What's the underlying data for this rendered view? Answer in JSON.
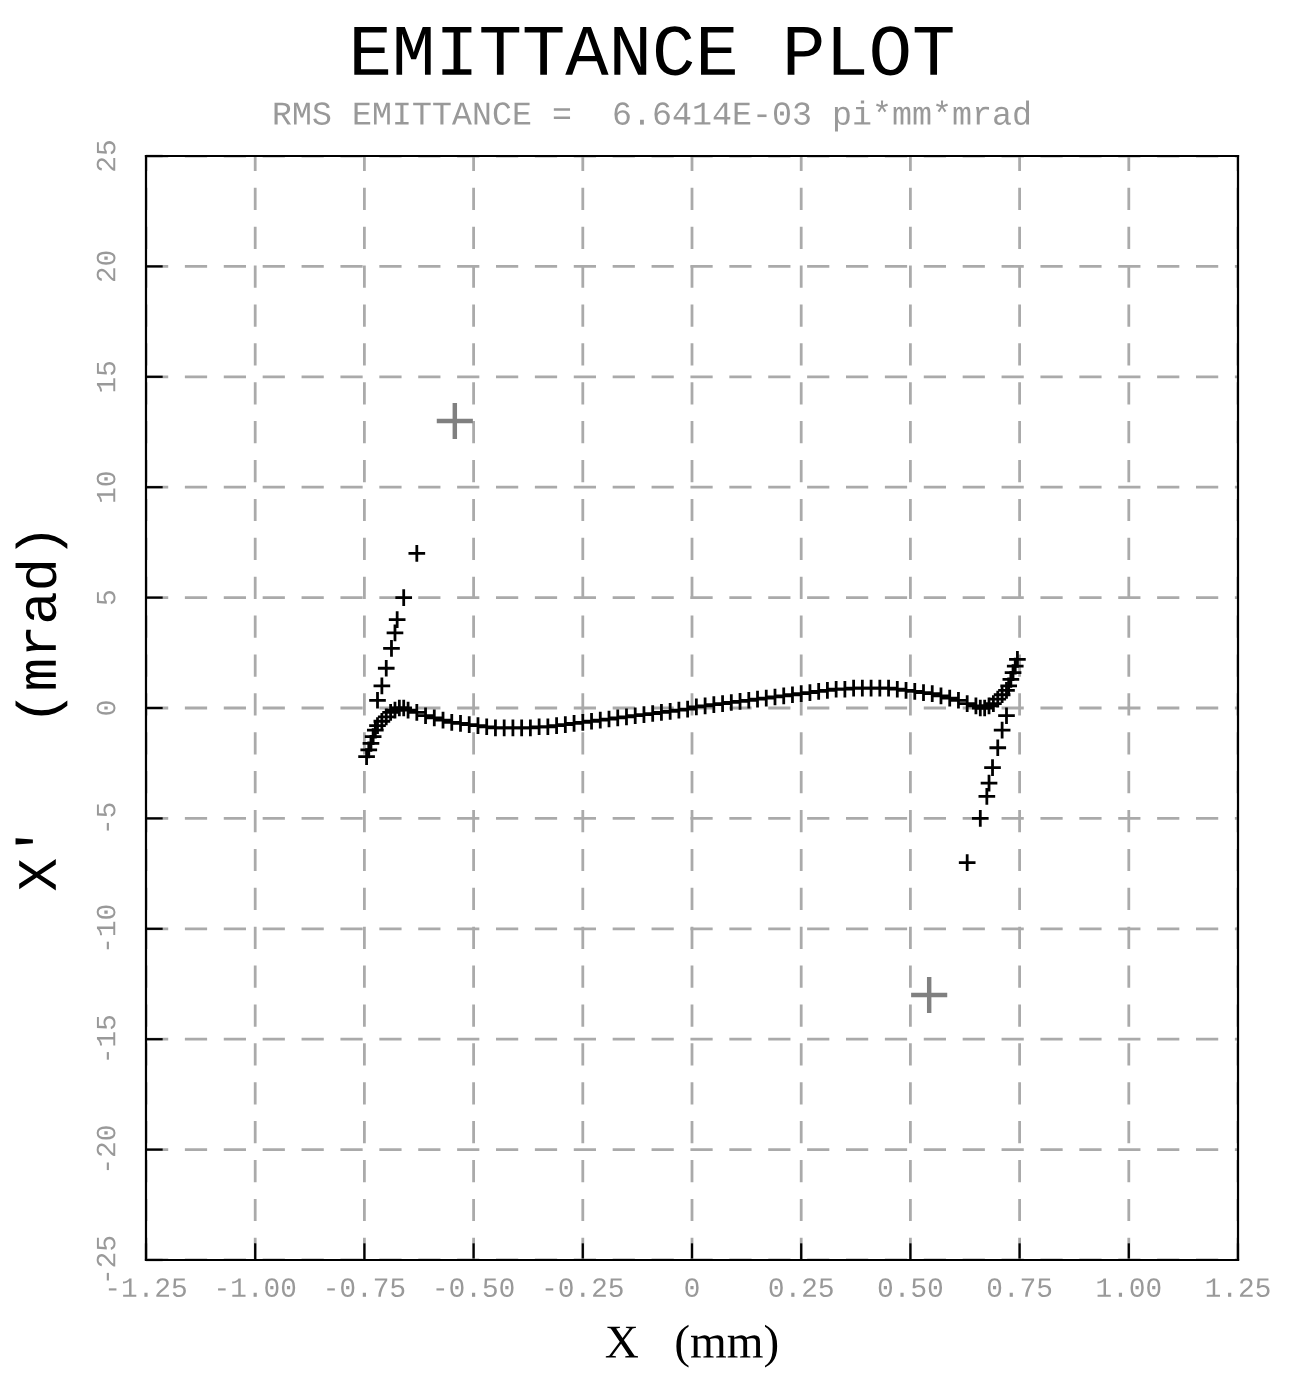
{
  "chart_data": {
    "type": "scatter",
    "title": "EMITTANCE PLOT",
    "subtitle": "RMS EMITTANCE =  6.6414E-03 pi*mm*mrad",
    "xlabel": "X   (mm)",
    "ylabel": "X'   (mrad)",
    "xlim": [
      -1.25,
      1.25
    ],
    "ylim": [
      -25,
      25
    ],
    "xticks": [
      -1.25,
      {
        "value": -1.0,
        "label": "-1.00"
      },
      {
        "value": -0.75,
        "label": "-0.75"
      },
      {
        "value": -0.5,
        "label": "-0.50"
      },
      {
        "value": -0.25,
        "label": "-0.25"
      },
      0,
      0.25,
      {
        "value": 0.5,
        "label": "0.50"
      },
      0.75,
      {
        "value": 1.0,
        "label": "1.00"
      },
      1.25
    ],
    "yticks": [
      -25,
      -20,
      -15,
      -10,
      -5,
      0,
      5,
      10,
      15,
      20,
      25
    ],
    "grid": true,
    "marker": "cross",
    "series": [
      {
        "color": "#000000",
        "x": [
          -0.63,
          -0.66,
          -0.675,
          -0.68,
          -0.688,
          -0.7,
          -0.71,
          -0.72,
          -0.745,
          -0.74,
          -0.735,
          -0.73,
          -0.725,
          -0.72,
          -0.71,
          -0.7,
          -0.69,
          -0.68,
          -0.67,
          -0.66,
          -0.65,
          -0.63,
          -0.61,
          -0.59,
          -0.57,
          -0.55,
          -0.53,
          -0.51,
          -0.49,
          -0.47,
          -0.45,
          -0.43,
          -0.41,
          -0.39,
          -0.37,
          -0.35,
          -0.33,
          -0.31,
          -0.29,
          -0.27,
          -0.25,
          -0.23,
          -0.21,
          -0.19,
          -0.17,
          -0.15,
          -0.13,
          -0.11,
          -0.09,
          -0.07,
          -0.05,
          -0.03,
          -0.01,
          0.01,
          0.03,
          0.05,
          0.07,
          0.09,
          0.11,
          0.13,
          0.15,
          0.17,
          0.19,
          0.21,
          0.23,
          0.25,
          0.27,
          0.29,
          0.31,
          0.33,
          0.35,
          0.37,
          0.39,
          0.41,
          0.43,
          0.45,
          0.47,
          0.49,
          0.51,
          0.53,
          0.55,
          0.57,
          0.59,
          0.61,
          0.63,
          0.65,
          0.66,
          0.67,
          0.68,
          0.69,
          0.7,
          0.71,
          0.72,
          0.725,
          0.73,
          0.735,
          0.74,
          0.745,
          0.72,
          0.71,
          0.7,
          0.688,
          0.68,
          0.675,
          0.66,
          0.63
        ],
        "values": [
          7,
          5,
          4,
          3.4,
          2.7,
          1.8,
          1,
          0.35,
          -2.2,
          -1.9,
          -1.6,
          -1.3,
          -1,
          -0.8,
          -0.6,
          -0.4,
          -0.2,
          -0.1,
          0,
          0,
          -0.1,
          -0.2,
          -0.35,
          -0.45,
          -0.55,
          -0.65,
          -0.7,
          -0.75,
          -0.8,
          -0.85,
          -0.9,
          -0.9,
          -0.9,
          -0.9,
          -0.9,
          -0.85,
          -0.85,
          -0.8,
          -0.75,
          -0.7,
          -0.65,
          -0.6,
          -0.55,
          -0.5,
          -0.45,
          -0.4,
          -0.35,
          -0.3,
          -0.25,
          -0.2,
          -0.15,
          -0.1,
          -0.05,
          0.05,
          0.1,
          0.15,
          0.2,
          0.25,
          0.3,
          0.35,
          0.4,
          0.45,
          0.5,
          0.55,
          0.6,
          0.65,
          0.7,
          0.75,
          0.8,
          0.85,
          0.85,
          0.9,
          0.9,
          0.9,
          0.9,
          0.9,
          0.85,
          0.8,
          0.75,
          0.7,
          0.65,
          0.55,
          0.45,
          0.35,
          0.2,
          0.1,
          0,
          0,
          0.1,
          0.2,
          0.4,
          0.6,
          0.8,
          1,
          1.3,
          1.6,
          1.9,
          2.2,
          -0.35,
          -1,
          -1.8,
          -2.7,
          -3.4,
          -4,
          -5,
          -7
        ]
      },
      {
        "color": "#808080",
        "x": [
          -0.543,
          0.543
        ],
        "values": [
          13,
          -13
        ]
      }
    ]
  }
}
